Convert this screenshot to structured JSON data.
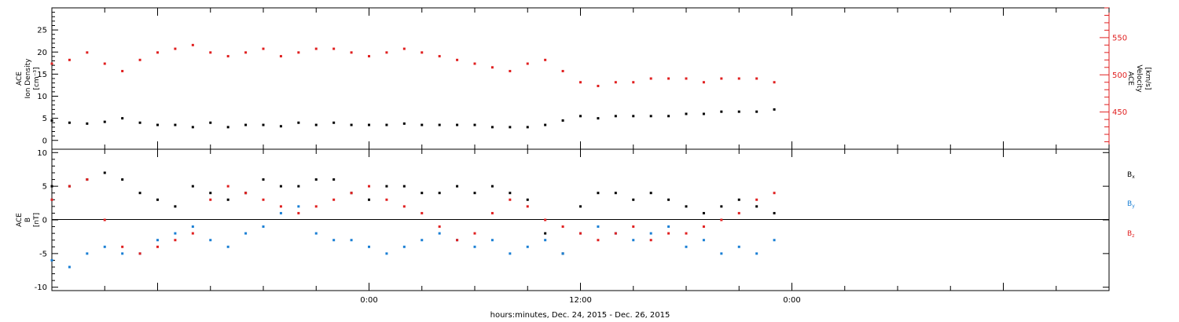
{
  "figure": {
    "xlabel": "hours:minutes, Dec. 24, 2015 - Dec. 26, 2015",
    "x_ticks": [
      "0:00",
      "12:00",
      "0:00"
    ]
  },
  "chart_data": [
    {
      "type": "scatter",
      "panel": "top",
      "left_label_lines": [
        "ACE",
        "Ion Density",
        "[cm⁻³]"
      ],
      "right_label_lines": [
        "ACE",
        "Velocity",
        "[km/s]"
      ],
      "x_range_hours": [
        -18,
        42
      ],
      "ylim_left": [
        -2,
        30
      ],
      "ylim_right": [
        400,
        590
      ],
      "y_ticks_left": [
        "0",
        "5",
        "10",
        "15",
        "20",
        "25"
      ],
      "y_ticks_right": [
        "450",
        "500",
        "550"
      ],
      "series": [
        {
          "axis": "left",
          "color": "#000000",
          "x": [
            -18,
            -17,
            -16,
            -15,
            -14,
            -13,
            -12,
            -11,
            -10,
            -9,
            -8,
            -7,
            -6,
            -5,
            -4,
            -3,
            -2,
            -1,
            0,
            1,
            2,
            3,
            4,
            5,
            6,
            7,
            8,
            9,
            10,
            11,
            12,
            13,
            14,
            15,
            16,
            17,
            18,
            19,
            20,
            21,
            22,
            23
          ],
          "values": [
            4.5,
            4,
            3.8,
            4.2,
            5,
            4,
            3.5,
            3.5,
            3,
            4,
            3,
            3.5,
            3.5,
            3.2,
            4,
            3.5,
            4,
            3.5,
            3.5,
            3.5,
            3.8,
            3.5,
            3.5,
            3.5,
            3.5,
            3,
            3,
            3,
            3.5,
            4.5,
            5.5,
            5,
            5.5,
            5.5,
            5.5,
            5.5,
            6,
            6,
            6.5,
            6.5,
            6.5,
            7
          ]
        },
        {
          "axis": "right",
          "color": "#e02020",
          "x": [
            -18,
            -17,
            -16,
            -15,
            -14,
            -13,
            -12,
            -11,
            -10,
            -9,
            -8,
            -7,
            -6,
            -5,
            -4,
            -3,
            -2,
            -1,
            0,
            1,
            2,
            3,
            4,
            5,
            6,
            7,
            8,
            9,
            10,
            11,
            12,
            13,
            14,
            15,
            16,
            17,
            18,
            19,
            20,
            21,
            22,
            23
          ],
          "values": [
            515,
            520,
            530,
            515,
            505,
            520,
            530,
            535,
            540,
            530,
            525,
            530,
            535,
            525,
            530,
            535,
            535,
            530,
            525,
            530,
            535,
            530,
            525,
            520,
            515,
            510,
            505,
            515,
            520,
            505,
            490,
            485,
            490,
            490,
            495,
            495,
            495,
            490,
            495,
            495,
            495,
            490
          ]
        }
      ]
    },
    {
      "type": "scatter",
      "panel": "bottom",
      "left_label_lines": [
        "ACE",
        "B",
        "[nT]"
      ],
      "x_range_hours": [
        -18,
        42
      ],
      "ylim": [
        -10.5,
        10.5
      ],
      "y_ticks": [
        "-10",
        "-5",
        "0",
        "5",
        "10"
      ],
      "zero_line": true,
      "series": [
        {
          "name": "Bx",
          "label_main": "B",
          "label_sub": "x",
          "color": "#000000",
          "x": [
            -18,
            -17,
            -16,
            -15,
            -14,
            -13,
            -12,
            -11,
            -10,
            -9,
            -8,
            -7,
            -6,
            -5,
            -4,
            -3,
            -2,
            -1,
            0,
            1,
            2,
            3,
            4,
            5,
            6,
            7,
            8,
            9,
            10,
            11,
            12,
            13,
            14,
            15,
            16,
            17,
            18,
            19,
            20,
            21,
            22,
            23
          ],
          "values": [
            5,
            5,
            6,
            7,
            6,
            4,
            3,
            2,
            5,
            4,
            3,
            4,
            6,
            5,
            5,
            6,
            6,
            4,
            3,
            5,
            5,
            4,
            4,
            5,
            4,
            5,
            4,
            3,
            -2,
            -5,
            2,
            4,
            4,
            3,
            4,
            3,
            2,
            1,
            2,
            3,
            2,
            1
          ]
        },
        {
          "name": "By",
          "label_main": "B",
          "label_sub": "y",
          "color": "#1a7fd4",
          "x": [
            -18,
            -17,
            -16,
            -15,
            -14,
            -13,
            -12,
            -11,
            -10,
            -9,
            -8,
            -7,
            -6,
            -5,
            -4,
            -3,
            -2,
            -1,
            0,
            1,
            2,
            3,
            4,
            5,
            6,
            7,
            8,
            9,
            10,
            11,
            12,
            13,
            14,
            15,
            16,
            17,
            18,
            19,
            20,
            21,
            22,
            23
          ],
          "values": [
            -6,
            -7,
            -5,
            -4,
            -5,
            -5,
            -3,
            -2,
            -1,
            -3,
            -4,
            -2,
            -1,
            1,
            2,
            -2,
            -3,
            -3,
            -4,
            -5,
            -4,
            -3,
            -2,
            -3,
            -4,
            -3,
            -5,
            -4,
            -3,
            -5,
            -2,
            -1,
            -2,
            -3,
            -2,
            -1,
            -4,
            -3,
            -5,
            -4,
            -5,
            -3
          ]
        },
        {
          "name": "Bz",
          "label_main": "B",
          "label_sub": "z",
          "color": "#e02020",
          "x": [
            -18,
            -17,
            -16,
            -15,
            -14,
            -13,
            -12,
            -11,
            -10,
            -9,
            -8,
            -7,
            -6,
            -5,
            -4,
            -3,
            -2,
            -1,
            0,
            1,
            2,
            3,
            4,
            5,
            6,
            7,
            8,
            9,
            10,
            11,
            12,
            13,
            14,
            15,
            16,
            17,
            18,
            19,
            20,
            21,
            22,
            23
          ],
          "values": [
            3,
            5,
            6,
            0,
            -4,
            -5,
            -4,
            -3,
            -2,
            3,
            5,
            4,
            3,
            2,
            1,
            2,
            3,
            4,
            5,
            3,
            2,
            1,
            -1,
            -3,
            -2,
            1,
            3,
            2,
            0,
            -1,
            -2,
            -3,
            -2,
            -1,
            -3,
            -2,
            -2,
            -1,
            0,
            1,
            3,
            4
          ]
        }
      ]
    }
  ]
}
